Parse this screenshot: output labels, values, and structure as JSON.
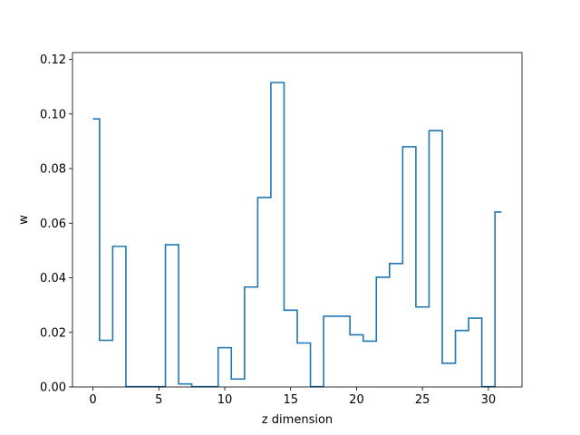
{
  "chart_data": {
    "type": "line",
    "drawstyle": "steps-mid",
    "title": "",
    "xlabel": "z dimension",
    "ylabel": "w",
    "xlim": [
      -1.55,
      32.55
    ],
    "ylim": [
      0,
      0.1225
    ],
    "xticks": [
      0,
      5,
      10,
      15,
      20,
      25,
      30
    ],
    "yticks": [
      0.0,
      0.02,
      0.04,
      0.06,
      0.08,
      0.1,
      0.12
    ],
    "ytick_labels": [
      "0.00",
      "0.02",
      "0.04",
      "0.06",
      "0.08",
      "0.10",
      "0.12"
    ],
    "grid": false,
    "series_color": "#1f77b4",
    "x": [
      0,
      1,
      2,
      3,
      4,
      5,
      6,
      7,
      8,
      9,
      10,
      11,
      12,
      13,
      14,
      15,
      16,
      17,
      18,
      19,
      20,
      21,
      22,
      23,
      24,
      25,
      26,
      27,
      28,
      29,
      30,
      31
    ],
    "y": [
      0.0982,
      0.0171,
      0.0515,
      0.0001,
      0.0001,
      0.0001,
      0.0521,
      0.0011,
      0.0001,
      0.0001,
      0.0144,
      0.0029,
      0.0366,
      0.0694,
      0.1115,
      0.0281,
      0.0161,
      0.0001,
      0.0259,
      0.0259,
      0.0191,
      0.0168,
      0.0402,
      0.0452,
      0.088,
      0.0293,
      0.0939,
      0.0087,
      0.0207,
      0.0252,
      0.0001,
      0.0641
    ]
  }
}
